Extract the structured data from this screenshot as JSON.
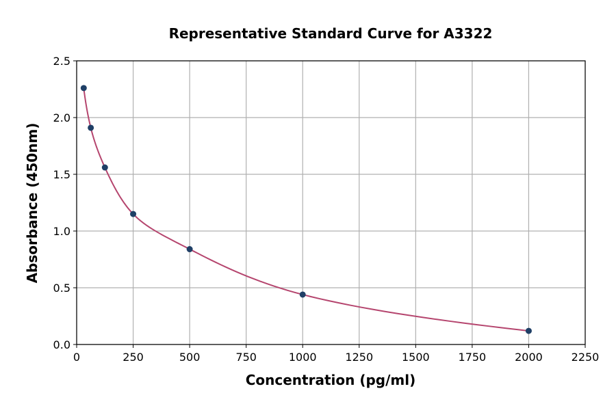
{
  "chart_data": {
    "type": "scatter",
    "title": "Representative Standard Curve for A3322",
    "xlabel": "Concentration (pg/ml)",
    "ylabel": "Absorbance (450nm)",
    "xlim": [
      0,
      2250
    ],
    "ylim": [
      0,
      2.5
    ],
    "xticks": [
      "0",
      "250",
      "500",
      "750",
      "1000",
      "1250",
      "1500",
      "1750",
      "2000",
      "2250"
    ],
    "yticks": [
      "0.0",
      "0.5",
      "1.0",
      "1.5",
      "2.0",
      "2.5"
    ],
    "grid": true,
    "points": [
      {
        "x": 31.25,
        "y": 2.26
      },
      {
        "x": 62.5,
        "y": 1.91
      },
      {
        "x": 125,
        "y": 1.56
      },
      {
        "x": 250,
        "y": 1.15
      },
      {
        "x": 500,
        "y": 0.84
      },
      {
        "x": 1000,
        "y": 0.44
      },
      {
        "x": 2000,
        "y": 0.12
      }
    ],
    "colors": {
      "points": "#1f3f66",
      "curve": "#b5456e",
      "grid": "#b0b0b0"
    }
  }
}
